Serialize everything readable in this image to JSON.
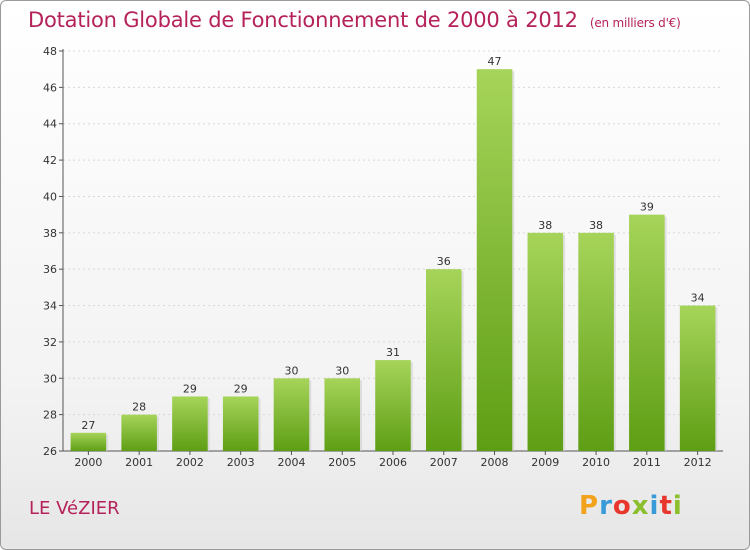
{
  "header": {
    "title": "Dotation Globale de Fonctionnement de 2000 à 2012",
    "subtitle": "(en milliers d'€)"
  },
  "footer": {
    "commune": "LE VéZIER",
    "logo_letters": [
      "P",
      "r",
      "o",
      "x",
      "i",
      "t",
      "i"
    ],
    "logo_colors": [
      "#f2a21b",
      "#3a9bd9",
      "#e8372c",
      "#8bbf2e",
      "#3a9bd9",
      "#e8372c",
      "#8bbf2e"
    ]
  },
  "chart_data": {
    "type": "bar",
    "title": "Dotation Globale de Fonctionnement de 2000 à 2012",
    "subtitle": "(en milliers d'€)",
    "categories": [
      "2000",
      "2001",
      "2002",
      "2003",
      "2004",
      "2005",
      "2006",
      "2007",
      "2008",
      "2009",
      "2010",
      "2011",
      "2012"
    ],
    "values": [
      27,
      28,
      29,
      29,
      30,
      30,
      31,
      36,
      47,
      38,
      38,
      39,
      34
    ],
    "ylim": [
      26,
      48
    ],
    "yticks": [
      26,
      28,
      30,
      32,
      34,
      36,
      38,
      40,
      42,
      44,
      46,
      48
    ],
    "grid": true,
    "bar_color_top": "#a6d45a",
    "bar_color_bottom": "#5e9e14"
  }
}
